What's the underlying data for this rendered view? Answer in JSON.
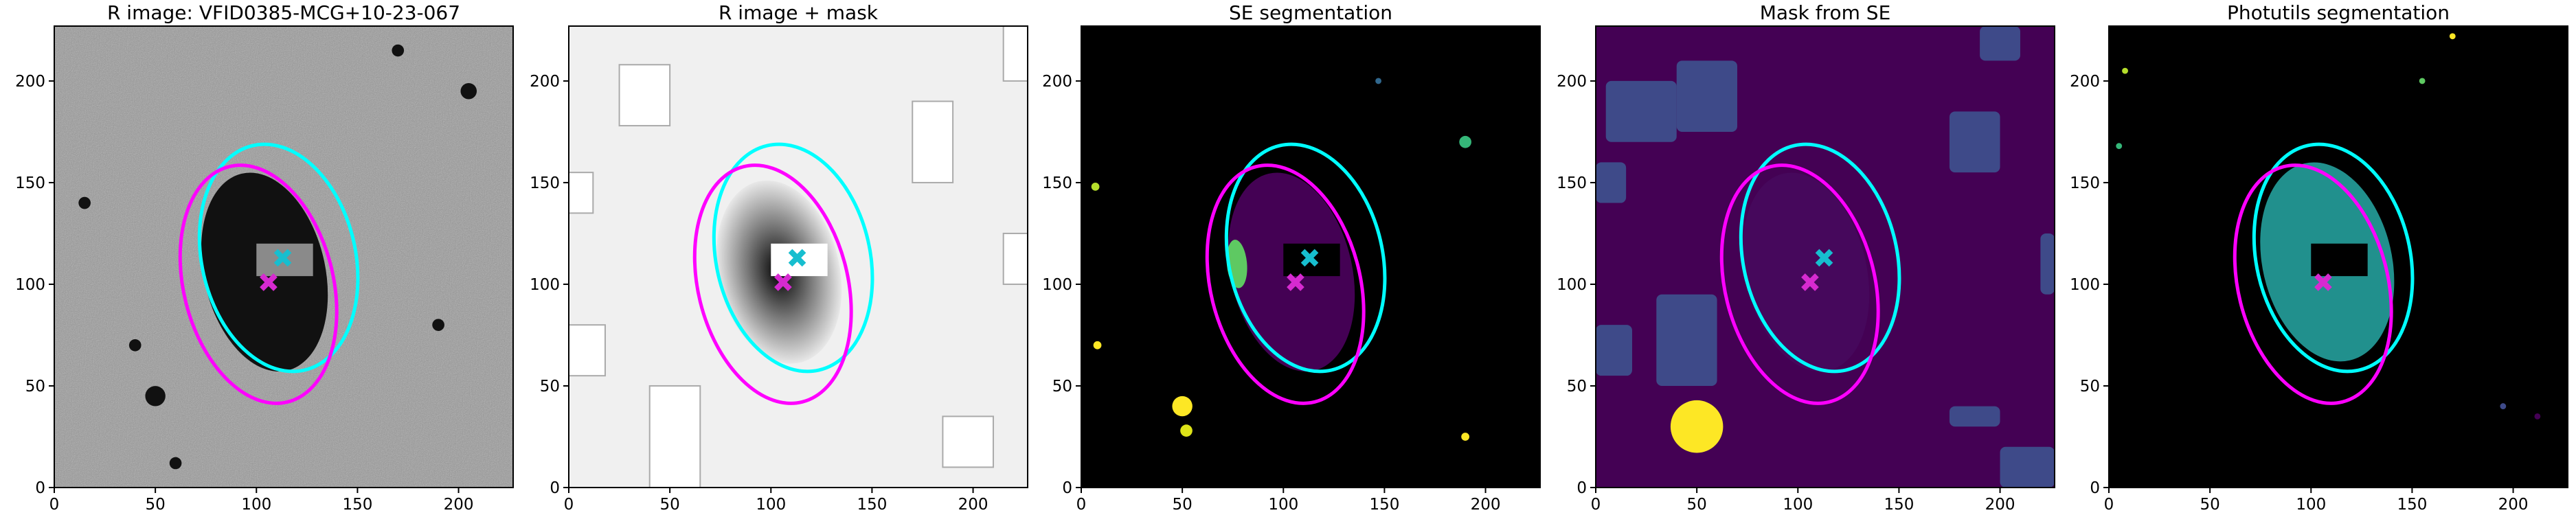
{
  "chart_data": [
    {
      "type": "image",
      "title": "R image: VFID0385-MCG+10-23-067",
      "xlim": [
        0,
        227
      ],
      "ylim": [
        0,
        227
      ],
      "xticks": [
        0,
        50,
        100,
        150,
        200
      ],
      "yticks": [
        0,
        50,
        100,
        150,
        200
      ],
      "ellipses": [
        {
          "x": 111,
          "y": 113,
          "width": 57,
          "height": 38,
          "angle": 103,
          "color": "#00ffff"
        },
        {
          "x": 101,
          "y": 100,
          "width": 60,
          "height": 37,
          "angle": 104,
          "color": "#ff00ff"
        }
      ],
      "markers": [
        {
          "x": 113,
          "y": 113,
          "color": "#17becf"
        },
        {
          "x": 106,
          "y": 101,
          "color": "#d62ad0"
        }
      ]
    },
    {
      "type": "image",
      "title": "R image + mask",
      "xlim": [
        0,
        227
      ],
      "ylim": [
        0,
        227
      ],
      "xticks": [
        0,
        50,
        100,
        150,
        200
      ],
      "yticks": [
        0,
        50,
        100,
        150,
        200
      ],
      "ellipses": [
        {
          "x": 111,
          "y": 113,
          "width": 57,
          "height": 38,
          "angle": 103,
          "color": "#00ffff"
        },
        {
          "x": 101,
          "y": 100,
          "width": 60,
          "height": 37,
          "angle": 104,
          "color": "#ff00ff"
        }
      ],
      "markers": [
        {
          "x": 113,
          "y": 113,
          "color": "#17becf"
        },
        {
          "x": 106,
          "y": 101,
          "color": "#d62ad0"
        }
      ]
    },
    {
      "type": "image",
      "title": "SE segmentation",
      "xlim": [
        0,
        227
      ],
      "ylim": [
        0,
        227
      ],
      "xticks": [
        0,
        50,
        100,
        150,
        200
      ],
      "yticks": [
        0,
        50,
        100,
        150,
        200
      ],
      "ellipses": [
        {
          "x": 111,
          "y": 113,
          "width": 57,
          "height": 38,
          "angle": 103,
          "color": "#00ffff"
        },
        {
          "x": 101,
          "y": 100,
          "width": 60,
          "height": 37,
          "angle": 104,
          "color": "#ff00ff"
        }
      ],
      "markers": [
        {
          "x": 113,
          "y": 113,
          "color": "#17becf"
        },
        {
          "x": 106,
          "y": 101,
          "color": "#d62ad0"
        }
      ]
    },
    {
      "type": "image",
      "title": "Mask from SE",
      "xlim": [
        0,
        227
      ],
      "ylim": [
        0,
        227
      ],
      "xticks": [
        0,
        50,
        100,
        150,
        200
      ],
      "yticks": [
        0,
        50,
        100,
        150,
        200
      ],
      "ellipses": [
        {
          "x": 111,
          "y": 113,
          "width": 57,
          "height": 38,
          "angle": 103,
          "color": "#00ffff"
        },
        {
          "x": 101,
          "y": 100,
          "width": 60,
          "height": 37,
          "angle": 104,
          "color": "#ff00ff"
        }
      ],
      "markers": [
        {
          "x": 113,
          "y": 113,
          "color": "#17becf"
        },
        {
          "x": 106,
          "y": 101,
          "color": "#d62ad0"
        }
      ]
    },
    {
      "type": "image",
      "title": "Photutils segmentation",
      "xlim": [
        0,
        227
      ],
      "ylim": [
        0,
        227
      ],
      "xticks": [
        0,
        50,
        100,
        150,
        200
      ],
      "yticks": [
        0,
        50,
        100,
        150,
        200
      ],
      "ellipses": [
        {
          "x": 111,
          "y": 113,
          "width": 57,
          "height": 38,
          "angle": 103,
          "color": "#00ffff"
        },
        {
          "x": 101,
          "y": 100,
          "width": 60,
          "height": 37,
          "angle": 104,
          "color": "#ff00ff"
        }
      ],
      "markers": [
        {
          "x": 106,
          "y": 101,
          "color": "#d62ad0"
        }
      ]
    }
  ]
}
